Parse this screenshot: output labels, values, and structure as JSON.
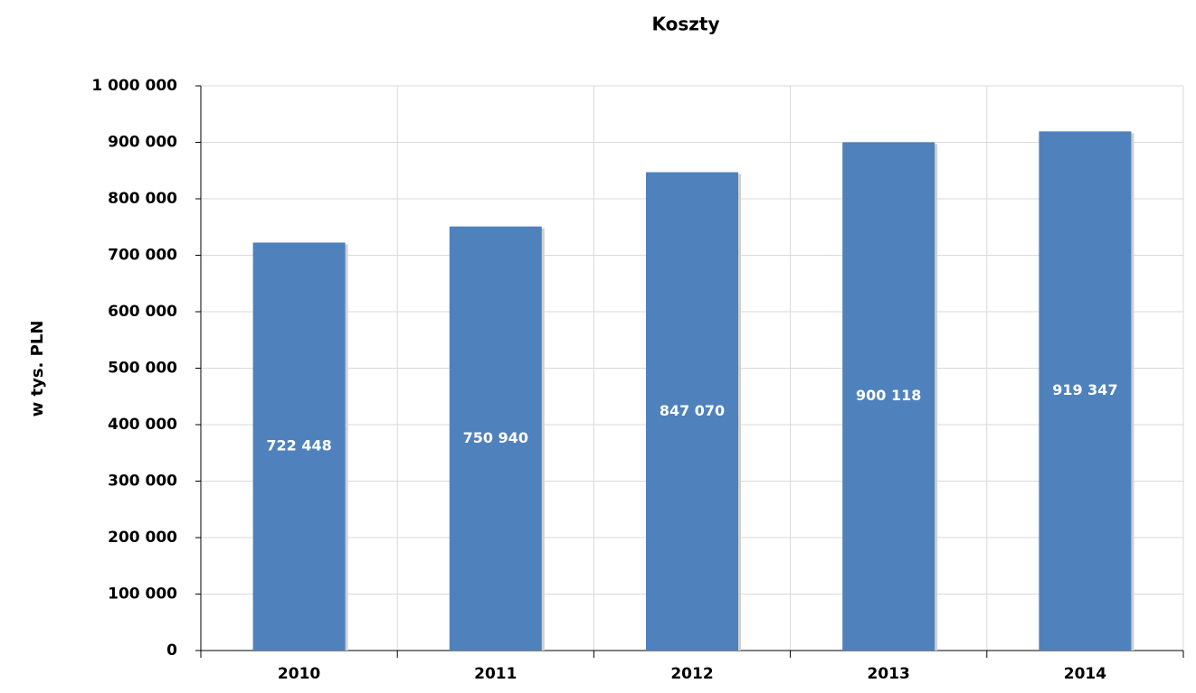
{
  "chart_data": {
    "type": "bar",
    "title": "Koszty",
    "y_label": "w tys. PLN",
    "categories": [
      "2010",
      "2011",
      "2012",
      "2013",
      "2014"
    ],
    "values": [
      722448,
      750940,
      847070,
      900118,
      919347
    ],
    "value_labels": [
      "722 448",
      "750 940",
      "847 070",
      "900 118",
      "919 347"
    ],
    "color": "#4f81bd",
    "ylim": [
      0,
      1000000
    ],
    "yticks": [
      0,
      {
        "value": 100000,
        "label": "100 000"
      },
      {
        "value": 200000,
        "label": "200 000"
      },
      {
        "value": 300000,
        "label": "300 000"
      },
      {
        "value": 400000,
        "label": "400 000"
      },
      {
        "value": 500000,
        "label": "500 000"
      },
      {
        "value": 600000,
        "label": "600 000"
      },
      {
        "value": 700000,
        "label": "700 000"
      },
      {
        "value": 800000,
        "label": "800 000"
      },
      {
        "value": 900000,
        "label": "900 000"
      },
      {
        "value": 1000000,
        "label": "1 000 000"
      }
    ],
    "grid": true
  }
}
